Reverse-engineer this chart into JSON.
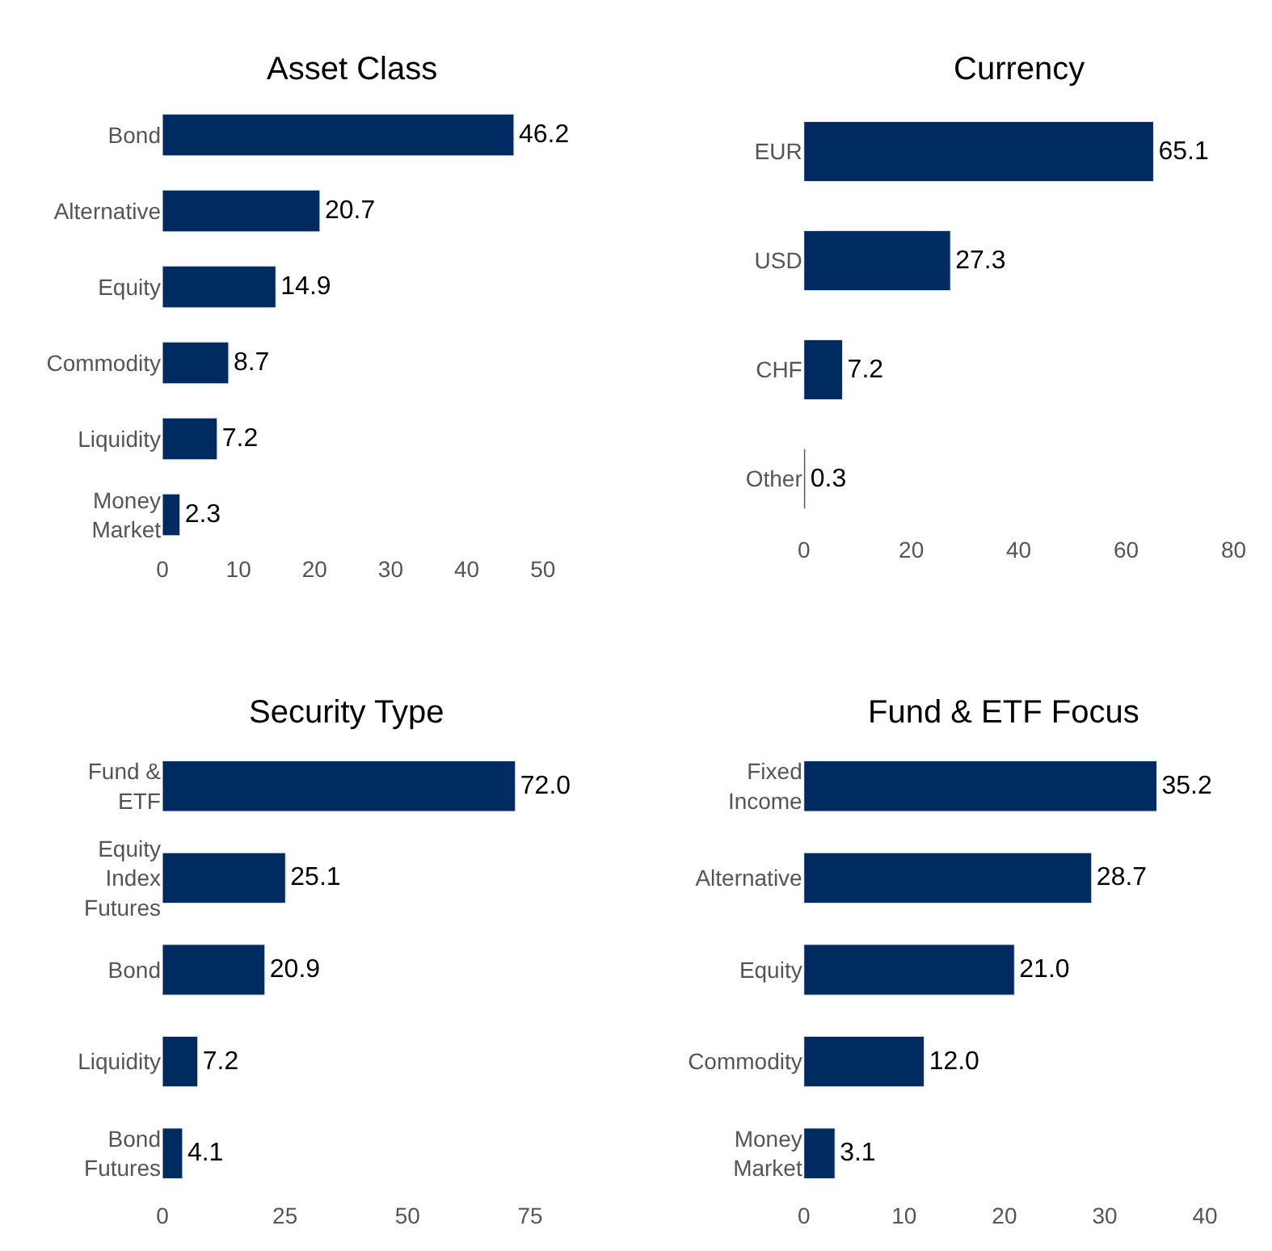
{
  "chart_data": [
    {
      "type": "bar",
      "orientation": "horizontal",
      "title": "Asset Class",
      "categories": [
        "Bond",
        "Alternative",
        "Equity",
        "Commodity",
        "Liquidity",
        "Money\nMarket"
      ],
      "values": [
        46.2,
        20.7,
        14.9,
        8.7,
        7.2,
        2.3
      ],
      "value_labels": [
        "46.2",
        "20.7",
        "14.9",
        "8.7",
        "7.2",
        "2.3"
      ],
      "color": "#002b60",
      "xlim": [
        0,
        50
      ],
      "xticks": [
        0,
        10,
        20,
        30,
        40,
        50
      ]
    },
    {
      "type": "bar",
      "orientation": "horizontal",
      "title": "Currency",
      "categories": [
        "EUR",
        "USD",
        "CHF",
        "Other"
      ],
      "values": [
        65.1,
        27.3,
        7.2,
        0.3
      ],
      "value_labels": [
        "65.1",
        "27.3",
        "7.2",
        "0.3"
      ],
      "color": "#002b60",
      "xlim": [
        0,
        80
      ],
      "xticks": [
        0,
        20,
        40,
        60,
        80
      ]
    },
    {
      "type": "bar",
      "orientation": "horizontal",
      "title": "Security Type",
      "categories": [
        "Fund &\nETF",
        "Equity\nIndex\nFutures",
        "Bond",
        "Liquidity",
        "Bond\nFutures"
      ],
      "values": [
        72.0,
        25.1,
        20.9,
        7.2,
        4.1
      ],
      "value_labels": [
        "72.0",
        "25.1",
        "20.9",
        "7.2",
        "4.1"
      ],
      "color": "#002b60",
      "xlim": [
        0,
        75
      ],
      "xticks": [
        0,
        25,
        50,
        75
      ]
    },
    {
      "type": "bar",
      "orientation": "horizontal",
      "title": "Fund & ETF Focus",
      "categories": [
        "Fixed\nIncome",
        "Alternative",
        "Equity",
        "Commodity",
        "Money\nMarket"
      ],
      "values": [
        35.2,
        28.7,
        21.0,
        12.0,
        3.1
      ],
      "value_labels": [
        "35.2",
        "28.7",
        "21.0",
        "12.0",
        "3.1"
      ],
      "color": "#002b60",
      "xlim": [
        0,
        40
      ],
      "xticks": [
        0,
        10,
        20,
        30,
        40
      ]
    }
  ]
}
